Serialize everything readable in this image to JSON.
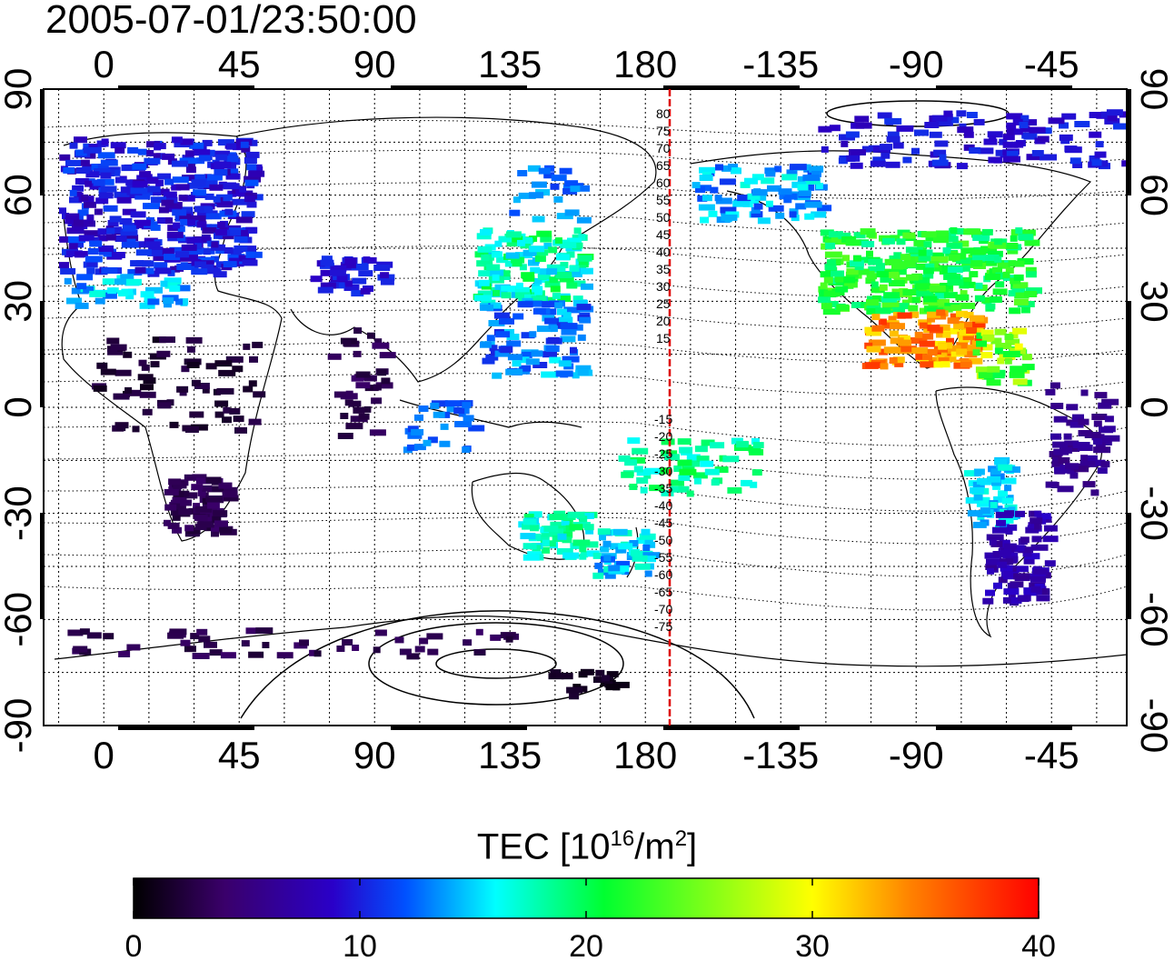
{
  "timestamp": "2005-07-01/23:50:00",
  "map": {
    "projection": "equirectangular",
    "lon_range_deg": [
      -20,
      340
    ],
    "lat_range_deg": [
      -90,
      90
    ],
    "top_ticks": [
      "0",
      "45",
      "90",
      "135",
      "180",
      "-135",
      "-90",
      "-45"
    ],
    "bottom_ticks": [
      "0",
      "45",
      "90",
      "135",
      "180",
      "-135",
      "-90",
      "-45"
    ],
    "left_ticks": [
      "90",
      "60",
      "30",
      "0",
      "-30",
      "-60",
      "-90"
    ],
    "right_ticks": [
      "90",
      "60",
      "30",
      "0",
      "-30",
      "-60",
      "-90"
    ],
    "grid": "dotted, 15 degree spacing",
    "meridian_marker": {
      "lon_deg": 182,
      "color": "#dd0000"
    },
    "contour_labels_north": [
      "80",
      "75",
      "70",
      "65",
      "60",
      "55",
      "50",
      "45",
      "40",
      "35",
      "30",
      "25",
      "20",
      "15"
    ],
    "contour_labels_south": [
      "-15",
      "-20",
      "-25",
      "-30",
      "-35",
      "-40",
      "-45",
      "-50",
      "-55",
      "-60",
      "-65",
      "-70",
      "-75"
    ]
  },
  "colorbar": {
    "title_prefix": "TEC  [10",
    "title_exp1": "16",
    "title_mid": "/m",
    "title_exp2": "2",
    "title_suffix": "]",
    "min": 0,
    "max": 40,
    "tick_labels": [
      "0",
      "10",
      "20",
      "30",
      "40"
    ],
    "colors": [
      "#000000",
      "#3a006a",
      "#2a00c8",
      "#0050ff",
      "#00ffff",
      "#00ff30",
      "#ffff00",
      "#ff8000",
      "#ff0000"
    ]
  }
}
